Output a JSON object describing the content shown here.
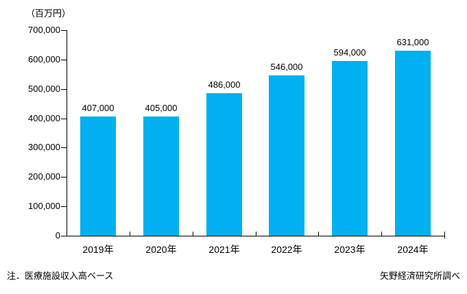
{
  "chart_data": {
    "type": "bar",
    "title": "",
    "unit_label": "（百万円）",
    "categories": [
      "2019年",
      "2020年",
      "2021年",
      "2022年",
      "2023年",
      "2024年"
    ],
    "values": [
      407000,
      405000,
      486000,
      546000,
      594000,
      631000
    ],
    "value_labels": [
      "407,000",
      "405,000",
      "486,000",
      "546,000",
      "594,000",
      "631,000"
    ],
    "y_axis": {
      "min": 0,
      "max": 700000,
      "tick_interval": 100000,
      "tick_labels": [
        "0",
        "100,000",
        "200,000",
        "300,000",
        "400,000",
        "500,000",
        "600,000",
        "700,000"
      ]
    },
    "bar_color": "#00B0F0",
    "axis_color": "#000000",
    "grid": false,
    "legend": "none"
  },
  "footer": {
    "note_left": "注．医療施設収入高ベース",
    "note_right": "矢野経済研究所調べ"
  }
}
